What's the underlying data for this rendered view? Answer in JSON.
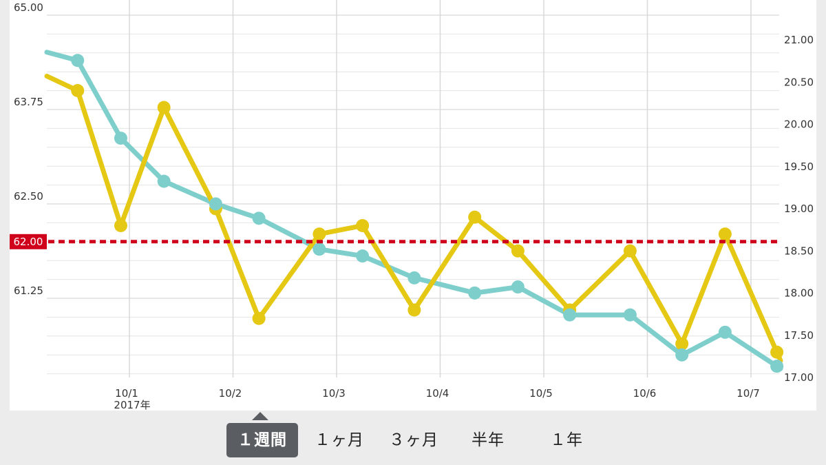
{
  "chart_data": {
    "type": "line",
    "y_left": {
      "ticks": [
        "65.00",
        "63.75",
        "62.50",
        "61.25"
      ],
      "range": [
        60.0,
        65.0
      ]
    },
    "y_right": {
      "ticks": [
        "21.00",
        "20.50",
        "20.00",
        "19.50",
        "19.00",
        "18.50",
        "18.00",
        "17.50",
        "17.00"
      ],
      "range": [
        17.0,
        21.5
      ]
    },
    "x_ticks": [
      "10/1",
      "10/2",
      "10/3",
      "10/4",
      "10/5",
      "10/6",
      "10/7"
    ],
    "x_year_label": "2017年",
    "reference_line": {
      "value": 62.0,
      "label": "62.00",
      "color": "#d0021b"
    },
    "series": [
      {
        "color": "#7ecfcc",
        "axis": "left",
        "points": [
          [
            "9/30 12:00",
            64.4
          ],
          [
            "9/30 22:00",
            63.37
          ],
          [
            "10/1 08:00",
            62.8
          ],
          [
            "10/1 20:00",
            62.5
          ],
          [
            "10/2 06:00",
            62.31
          ],
          [
            "10/2 20:00",
            61.9
          ],
          [
            "10/3 06:00",
            61.81
          ],
          [
            "10/3 18:00",
            61.52
          ],
          [
            "10/4 08:00",
            61.32
          ],
          [
            "10/4 18:00",
            61.4
          ],
          [
            "10/5 06:00",
            61.03
          ],
          [
            "10/5 20:00",
            61.03
          ],
          [
            "10/6 08:00",
            60.5
          ],
          [
            "10/6 18:00",
            60.8
          ],
          [
            "10/7 06:00",
            60.35
          ]
        ]
      },
      {
        "color": "#e5c814",
        "axis": "right",
        "points": [
          [
            "9/30 12:00",
            20.4
          ],
          [
            "9/30 22:00",
            18.8
          ],
          [
            "10/1 08:00",
            20.2
          ],
          [
            "10/1 20:00",
            19.0
          ],
          [
            "10/2 06:00",
            17.7
          ],
          [
            "10/2 20:00",
            18.7
          ],
          [
            "10/3 06:00",
            18.8
          ],
          [
            "10/3 18:00",
            17.8
          ],
          [
            "10/4 08:00",
            18.9
          ],
          [
            "10/4 18:00",
            18.5
          ],
          [
            "10/5 06:00",
            17.8
          ],
          [
            "10/5 20:00",
            18.5
          ],
          [
            "10/6 08:00",
            17.4
          ],
          [
            "10/6 18:00",
            18.7
          ],
          [
            "10/7 06:00",
            17.3
          ]
        ]
      }
    ],
    "grid": true
  },
  "period_tabs": [
    {
      "label": "１週間",
      "active": true
    },
    {
      "label": "１ヶ月",
      "active": false
    },
    {
      "label": "３ヶ月",
      "active": false
    },
    {
      "label": "半年",
      "active": false
    },
    {
      "label": "１年",
      "active": false
    }
  ],
  "colors": {
    "background": "#ececec",
    "active_tab": "#5a5e62",
    "series_teal": "#7ecfcc",
    "series_yellow": "#e5c814",
    "reference": "#d0021b"
  }
}
